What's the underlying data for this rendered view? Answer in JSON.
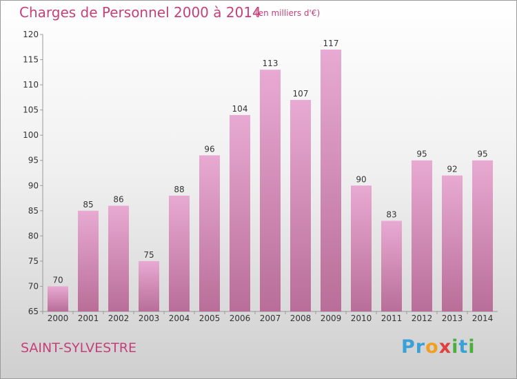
{
  "header": {
    "title": "Charges de Personnel 2000 à 2014",
    "unit_note": "(en milliers d'€)"
  },
  "footer": {
    "commune": "SAINT-SYLVESTRE",
    "logo_text": "Proxiti",
    "logo_letters": [
      {
        "ch": "P",
        "color": "#3aa0d8"
      },
      {
        "ch": "r",
        "color": "#3aa0d8"
      },
      {
        "ch": "o",
        "color": "#f0a020"
      },
      {
        "ch": "x",
        "color": "#e04040"
      },
      {
        "ch": "i",
        "color": "#4cae3c"
      },
      {
        "ch": "t",
        "color": "#3aa0d8"
      },
      {
        "ch": "i",
        "color": "#4cae3c"
      }
    ]
  },
  "colors": {
    "bar_top": "#e8aad2",
    "bar_bottom": "#b86e98",
    "text": "#333333",
    "accent": "#c4407a"
  },
  "chart_data": {
    "type": "bar",
    "title": "Charges de Personnel 2000 à 2014",
    "subtitle": "(en milliers d'€)",
    "categories": [
      "2000",
      "2001",
      "2002",
      "2003",
      "2004",
      "2005",
      "2006",
      "2007",
      "2008",
      "2009",
      "2010",
      "2011",
      "2012",
      "2013",
      "2014"
    ],
    "values": [
      70,
      85,
      86,
      75,
      88,
      96,
      104,
      113,
      107,
      117,
      90,
      83,
      95,
      92,
      95
    ],
    "ylim": [
      65,
      120
    ],
    "yticks": [
      65,
      70,
      75,
      80,
      85,
      90,
      95,
      100,
      105,
      110,
      115,
      120
    ],
    "grid": false,
    "data_labels": true
  }
}
